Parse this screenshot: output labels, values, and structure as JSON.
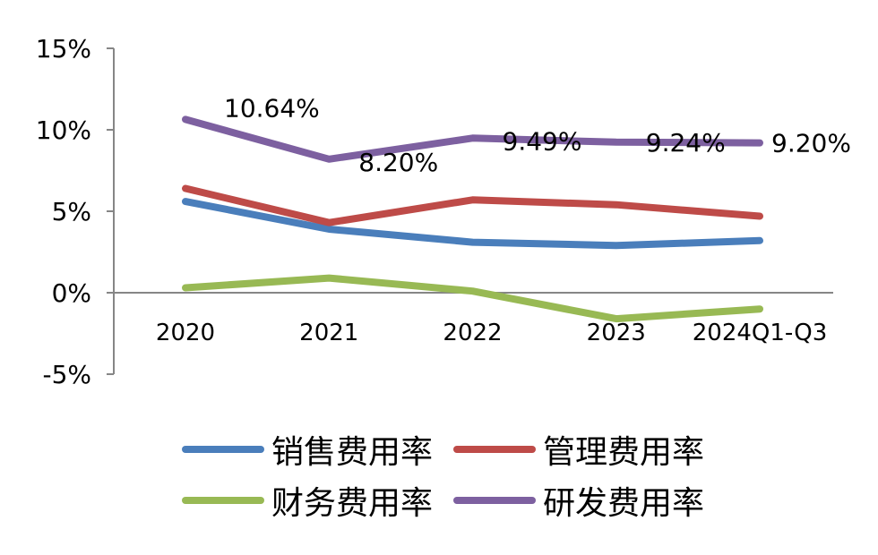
{
  "chart_data": {
    "type": "line",
    "categories": [
      "2020",
      "2021",
      "2022",
      "2023",
      "2024Q1-Q3"
    ],
    "y_ticks": [
      "15%",
      "10%",
      "5%",
      "0%",
      "-5%"
    ],
    "ylim": [
      -5,
      15
    ],
    "grid": false,
    "legend_position": "bottom",
    "series": [
      {
        "name": "销售费用率",
        "color": "#4a7ebb",
        "values": [
          5.6,
          3.9,
          3.1,
          2.9,
          3.2
        ]
      },
      {
        "name": "管理费用率",
        "color": "#be4b48",
        "values": [
          6.4,
          4.3,
          5.7,
          5.4,
          4.7
        ]
      },
      {
        "name": "财务费用率",
        "color": "#98b954",
        "values": [
          0.3,
          0.9,
          0.1,
          -1.6,
          -1.0
        ]
      },
      {
        "name": "研发费用率",
        "color": "#7d60a0",
        "values": [
          10.64,
          8.2,
          9.49,
          9.24,
          9.2
        ],
        "data_labels": [
          "10.64%",
          "8.20%",
          "9.49%",
          "9.24%",
          "9.20%"
        ]
      }
    ]
  }
}
